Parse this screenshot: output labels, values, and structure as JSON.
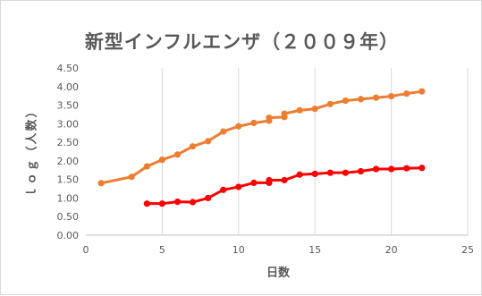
{
  "chart_data": {
    "type": "line",
    "title": "新型インフルエンザ（２００９年）",
    "xlabel": "日数",
    "ylabel": "ｌｏｇ（人数）",
    "xlim": [
      0,
      25
    ],
    "ylim": [
      0,
      4.5
    ],
    "x_ticks": [
      "0",
      "5",
      "10",
      "15",
      "20",
      "25"
    ],
    "y_ticks": [
      "0.00",
      "0.50",
      "1.00",
      "1.50",
      "2.00",
      "2.50",
      "3.00",
      "3.50",
      "4.00",
      "4.50"
    ],
    "grid": "vertical",
    "legend": "none",
    "series": [
      {
        "color": "#ED7D31",
        "points": [
          [
            1,
            1.4
          ],
          [
            3,
            1.57
          ],
          [
            4,
            1.85
          ],
          [
            5,
            2.03
          ],
          [
            6,
            2.17
          ],
          [
            7,
            2.39
          ],
          [
            8,
            2.53
          ],
          [
            9,
            2.79
          ],
          [
            10,
            2.93
          ],
          [
            11,
            3.02
          ],
          [
            12,
            3.08
          ],
          [
            12,
            3.16
          ],
          [
            13,
            3.18
          ],
          [
            13,
            3.27
          ],
          [
            14,
            3.36
          ],
          [
            15,
            3.4
          ],
          [
            16,
            3.53
          ],
          [
            17,
            3.62
          ],
          [
            18,
            3.66
          ],
          [
            19,
            3.7
          ],
          [
            20,
            3.74
          ],
          [
            21,
            3.81
          ],
          [
            22,
            3.87
          ]
        ]
      },
      {
        "color": "#FF0000",
        "points": [
          [
            4,
            0.85
          ],
          [
            5,
            0.85
          ],
          [
            6,
            0.9
          ],
          [
            7,
            0.89
          ],
          [
            8,
            1.0
          ],
          [
            9,
            1.22
          ],
          [
            10,
            1.3
          ],
          [
            11,
            1.41
          ],
          [
            12,
            1.41
          ],
          [
            12,
            1.48
          ],
          [
            13,
            1.48
          ],
          [
            14,
            1.63
          ],
          [
            15,
            1.65
          ],
          [
            16,
            1.68
          ],
          [
            17,
            1.68
          ],
          [
            18,
            1.72
          ],
          [
            19,
            1.78
          ],
          [
            20,
            1.78
          ],
          [
            21,
            1.8
          ],
          [
            22,
            1.81
          ]
        ]
      }
    ]
  }
}
